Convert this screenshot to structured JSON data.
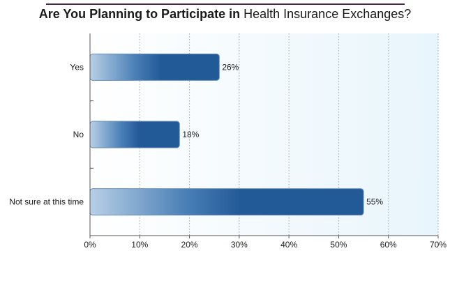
{
  "title": {
    "bold_part": "Are You Planning to Participate in",
    "regular_part": "Health Insurance Exchanges?"
  },
  "colors": {
    "title_rule": "#4b2452",
    "plot_bg_start": "#ffffff",
    "plot_bg_end": "#e8f5fc",
    "bar_dark": "#225a98",
    "bar_light": "#b8d0e6",
    "gridline": "#9aa5ad"
  },
  "chart_data": {
    "type": "bar",
    "orientation": "horizontal",
    "categories": [
      "Yes",
      "No",
      "Not sure at this time"
    ],
    "values": [
      26,
      18,
      55
    ],
    "value_labels": [
      "26%",
      "18%",
      "55%"
    ],
    "xlim": [
      0,
      70
    ],
    "x_ticks": [
      "0%",
      "10%",
      "20%",
      "30%",
      "40%",
      "50%",
      "60%",
      "70%"
    ],
    "grid": "vertical dotted",
    "legend": "none"
  }
}
